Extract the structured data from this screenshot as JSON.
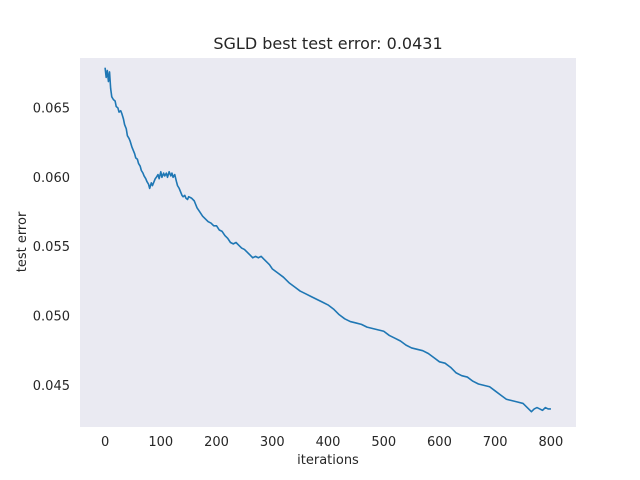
{
  "chart_data": {
    "type": "line",
    "title": "SGLD best test error: 0.0431",
    "xlabel": "iterations",
    "ylabel": "test error",
    "xlim": [
      -45,
      845
    ],
    "ylim": [
      0.042,
      0.0686
    ],
    "x_ticks": [
      0,
      100,
      200,
      300,
      400,
      500,
      600,
      700,
      800
    ],
    "y_ticks": [
      0.045,
      0.05,
      0.055,
      0.06,
      0.065
    ],
    "y_tick_labels": [
      "0.045",
      "0.050",
      "0.055",
      "0.060",
      "0.065"
    ],
    "x_tick_labels": [
      "0",
      "100",
      "200",
      "300",
      "400",
      "500",
      "600",
      "700",
      "800"
    ],
    "grid": false,
    "background": "#eaeaf2",
    "series": [
      {
        "color": "#1f77b4",
        "x": [
          0,
          2,
          4,
          6,
          8,
          10,
          12,
          15,
          18,
          20,
          23,
          25,
          28,
          30,
          33,
          35,
          38,
          40,
          43,
          45,
          48,
          50,
          53,
          55,
          58,
          60,
          63,
          65,
          68,
          70,
          73,
          75,
          78,
          80,
          83,
          85,
          88,
          90,
          92,
          95,
          97,
          100,
          102,
          105,
          107,
          110,
          112,
          115,
          118,
          120,
          122,
          125,
          128,
          130,
          133,
          135,
          138,
          140,
          143,
          145,
          148,
          150,
          155,
          160,
          165,
          170,
          175,
          180,
          185,
          190,
          195,
          200,
          205,
          210,
          215,
          220,
          225,
          230,
          235,
          240,
          245,
          250,
          255,
          260,
          265,
          270,
          275,
          280,
          285,
          290,
          295,
          300,
          310,
          320,
          330,
          340,
          350,
          360,
          370,
          380,
          390,
          400,
          410,
          420,
          430,
          440,
          450,
          460,
          470,
          480,
          490,
          500,
          510,
          520,
          530,
          540,
          550,
          560,
          570,
          580,
          590,
          600,
          610,
          620,
          630,
          640,
          650,
          660,
          670,
          680,
          690,
          700,
          710,
          720,
          730,
          740,
          750,
          755,
          760,
          765,
          770,
          775,
          780,
          785,
          790,
          795,
          800
        ],
        "y": [
          0.0679,
          0.0672,
          0.0677,
          0.0669,
          0.0676,
          0.0664,
          0.0658,
          0.0656,
          0.0655,
          0.0651,
          0.065,
          0.0647,
          0.0648,
          0.0646,
          0.0642,
          0.0638,
          0.0635,
          0.063,
          0.0628,
          0.0626,
          0.0622,
          0.062,
          0.0617,
          0.0614,
          0.0613,
          0.061,
          0.0608,
          0.0605,
          0.0603,
          0.0601,
          0.0599,
          0.0597,
          0.0595,
          0.0592,
          0.0596,
          0.0594,
          0.0597,
          0.0599,
          0.06,
          0.0602,
          0.0599,
          0.0604,
          0.06,
          0.0603,
          0.0601,
          0.0603,
          0.06,
          0.0604,
          0.0601,
          0.0603,
          0.06,
          0.0602,
          0.0597,
          0.0594,
          0.0592,
          0.059,
          0.0587,
          0.0586,
          0.0587,
          0.0585,
          0.0584,
          0.0586,
          0.0585,
          0.0583,
          0.0578,
          0.0575,
          0.0572,
          0.057,
          0.0568,
          0.0567,
          0.0565,
          0.0565,
          0.0562,
          0.0561,
          0.0558,
          0.0556,
          0.0553,
          0.0552,
          0.0553,
          0.0551,
          0.0549,
          0.0548,
          0.0546,
          0.0544,
          0.0542,
          0.0543,
          0.0542,
          0.0543,
          0.0541,
          0.0539,
          0.0537,
          0.0534,
          0.0531,
          0.0528,
          0.0524,
          0.0521,
          0.0518,
          0.0516,
          0.0514,
          0.0512,
          0.051,
          0.0508,
          0.0505,
          0.0501,
          0.0498,
          0.0496,
          0.0495,
          0.0494,
          0.0492,
          0.0491,
          0.049,
          0.0489,
          0.0486,
          0.0484,
          0.0482,
          0.0479,
          0.0477,
          0.0476,
          0.0475,
          0.0473,
          0.047,
          0.0467,
          0.0466,
          0.0463,
          0.0459,
          0.0457,
          0.0456,
          0.0453,
          0.0451,
          0.045,
          0.0449,
          0.0446,
          0.0443,
          0.044,
          0.0439,
          0.0438,
          0.0437,
          0.0435,
          0.0433,
          0.0431,
          0.0433,
          0.0434,
          0.0433,
          0.0432,
          0.0434,
          0.0433,
          0.0433
        ]
      }
    ]
  }
}
